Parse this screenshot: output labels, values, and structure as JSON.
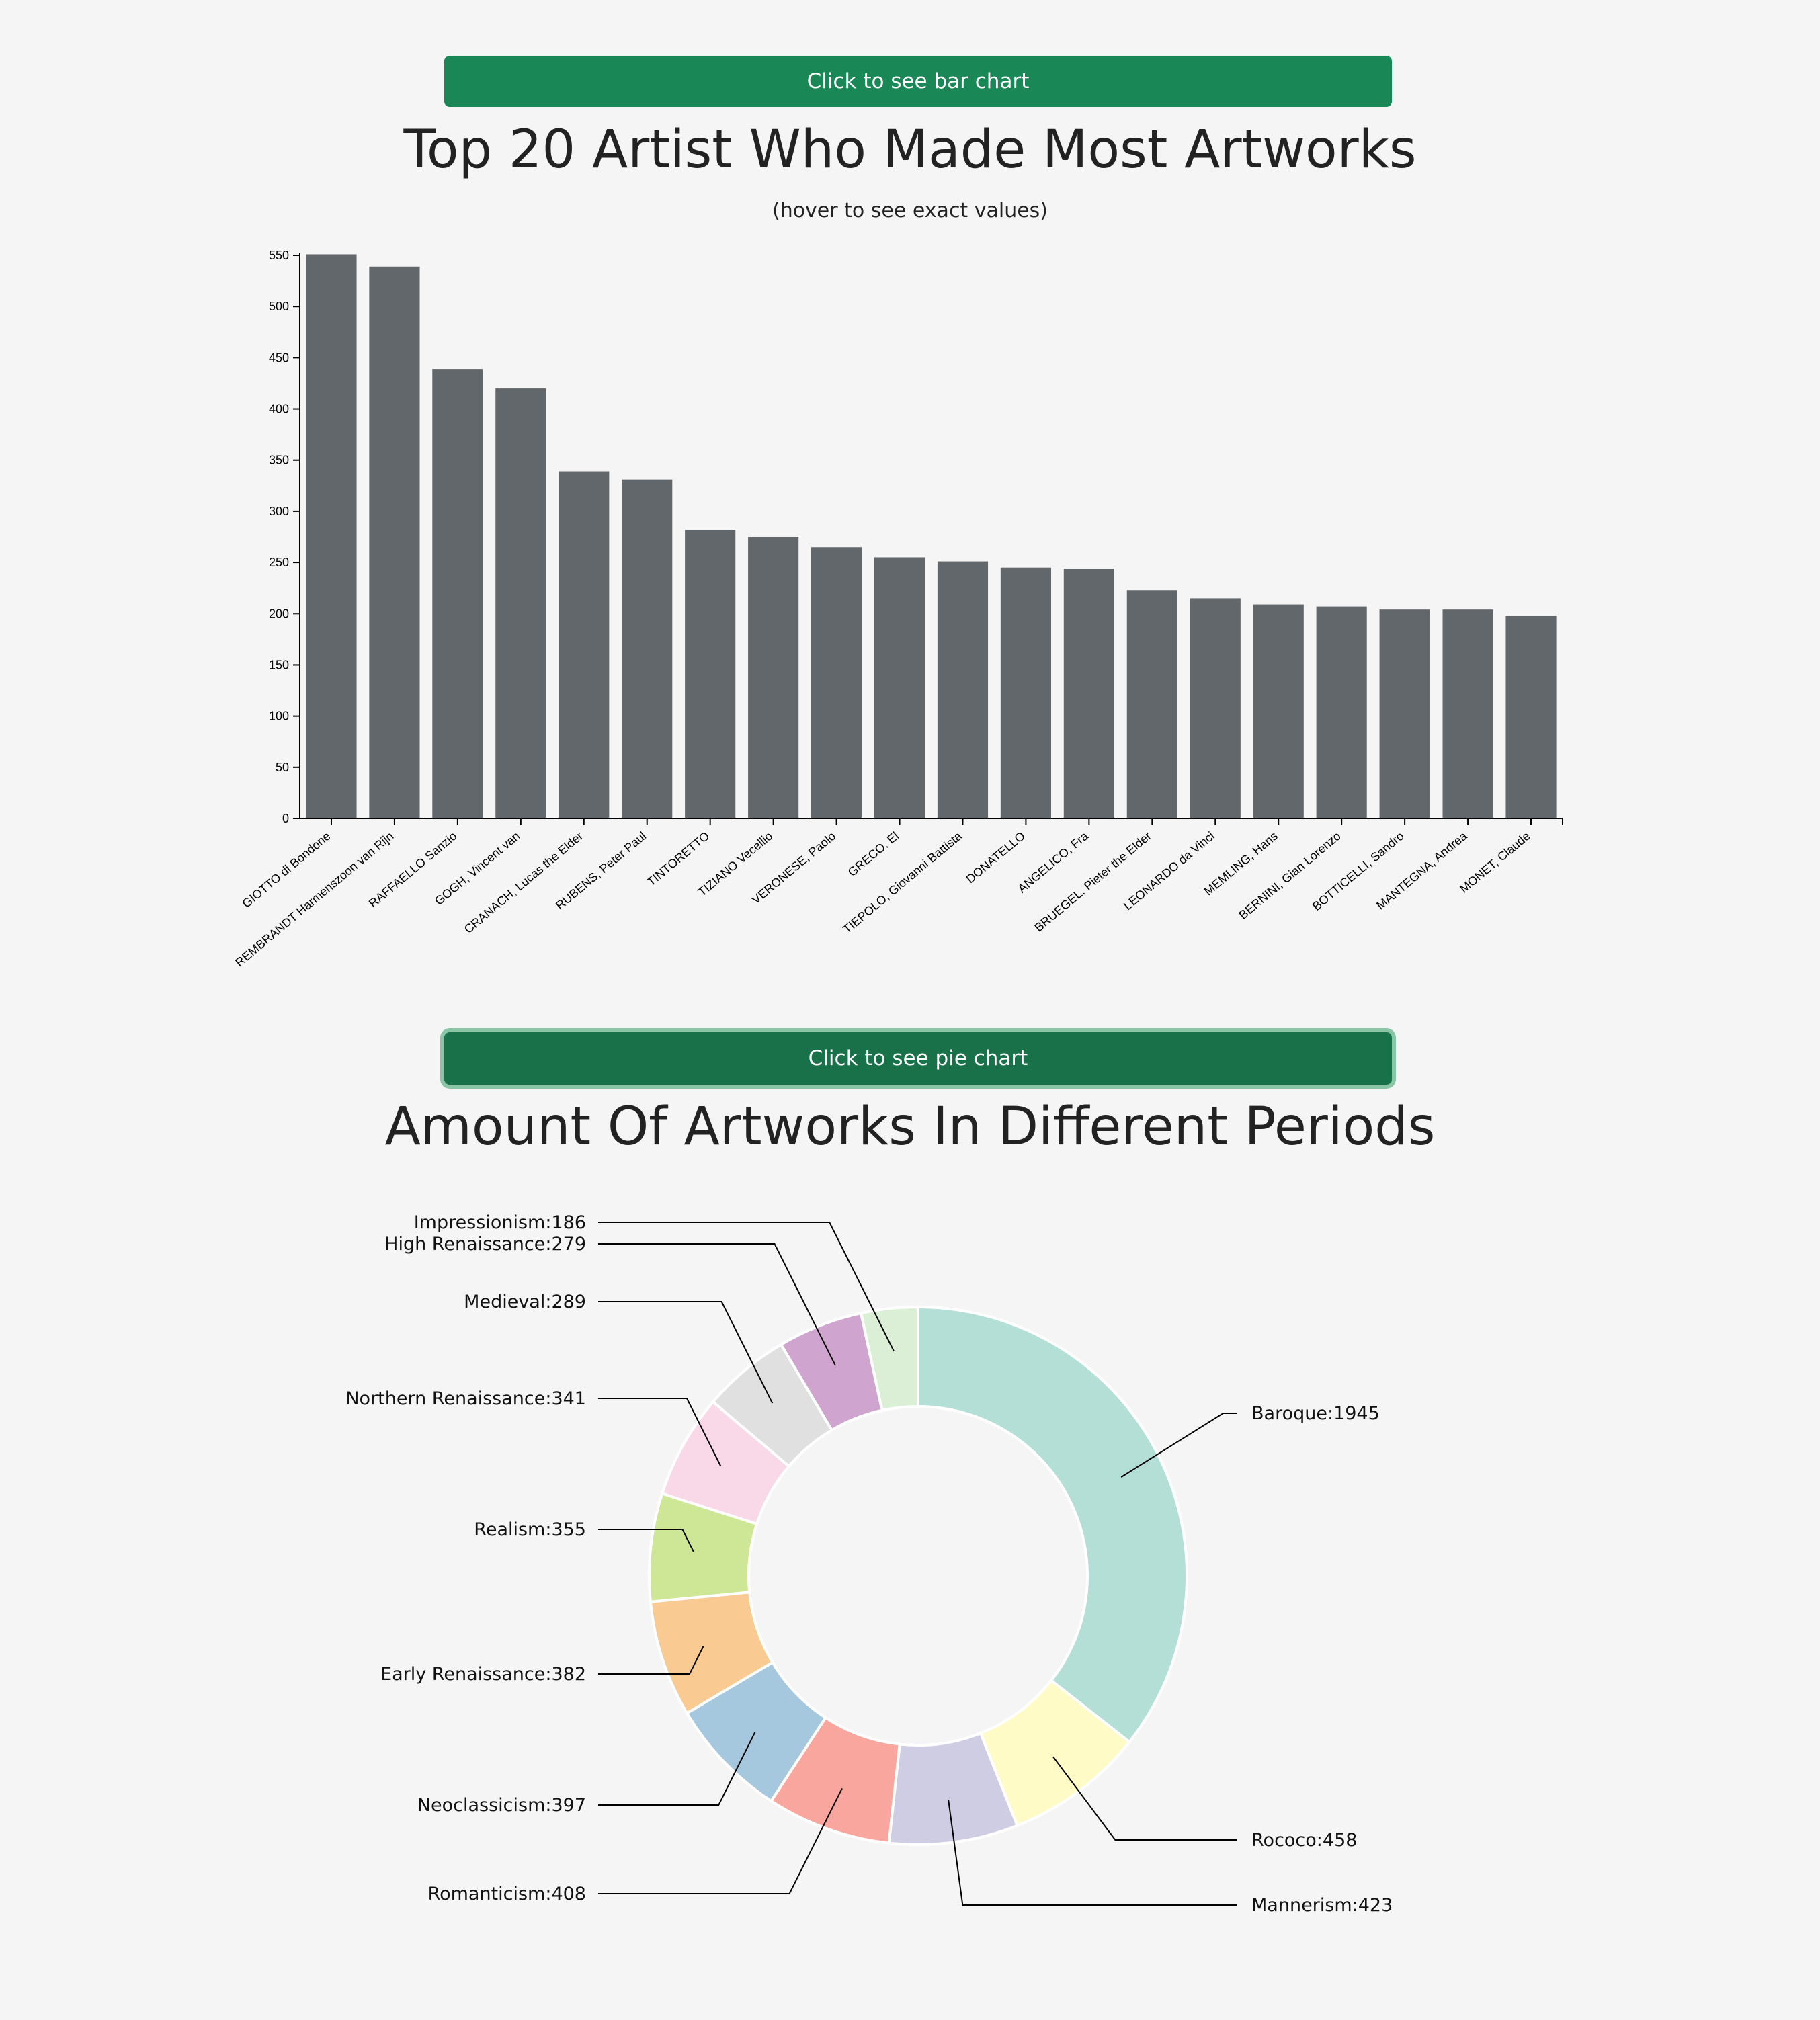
{
  "bar_section": {
    "button_label": "Click to see bar chart",
    "title": "Top 20 Artist Who Made Most Artworks",
    "subtitle": "(hover to see exact values)"
  },
  "pie_section": {
    "button_label": "Click to see pie chart",
    "title": "Amount Of Artworks In Different Periods"
  },
  "colors": {
    "bar_fill": "#62676b",
    "button_bar": "#1a8856",
    "button_pie": "#187149",
    "background": "#f5f5f5"
  },
  "chart_data": [
    {
      "type": "bar",
      "title": "Top 20 Artist Who Made Most Artworks",
      "subtitle": "(hover to see exact values)",
      "xlabel": "",
      "ylabel": "",
      "ylim": [
        0,
        550
      ],
      "yticks": [
        0,
        50,
        100,
        150,
        200,
        250,
        300,
        350,
        400,
        450,
        500,
        550
      ],
      "grid": false,
      "categories": [
        "GIOTTO di Bondone",
        "REMBRANDT Harmenszoon van Rijn",
        "RAFFAELLO Sanzio",
        "GOGH, Vincent van",
        "CRANACH, Lucas the Elder",
        "RUBENS, Peter Paul",
        "TINTORETTO",
        "TIZIANO Vecellio",
        "VERONESE, Paolo",
        "GRECO, El",
        "TIEPOLO, Giovanni Battista",
        "DONATELLO",
        "ANGELICO, Fra",
        "BRUEGEL, Pieter the Elder",
        "LEONARDO da Vinci",
        "MEMLING, Hans",
        "BERNINI, Gian Lorenzo",
        "BOTTICELLI, Sandro",
        "MANTEGNA, Andrea",
        "MONET, Claude"
      ],
      "values": [
        551,
        539,
        439,
        420,
        339,
        331,
        282,
        275,
        265,
        255,
        251,
        245,
        244,
        223,
        215,
        209,
        207,
        204,
        204,
        198
      ]
    },
    {
      "type": "pie",
      "title": "Amount Of Artworks In Different Periods",
      "donut": true,
      "slices": [
        {
          "label": "Baroque",
          "value": 1945,
          "color": "#b3dfd7"
        },
        {
          "label": "Rococo",
          "value": 458,
          "color": "#fefbc6"
        },
        {
          "label": "Mannerism",
          "value": 423,
          "color": "#cfcde3"
        },
        {
          "label": "Romanticism",
          "value": 408,
          "color": "#f9a79e"
        },
        {
          "label": "Neoclassicism",
          "value": 397,
          "color": "#a6c8de"
        },
        {
          "label": "Early Renaissance",
          "value": 382,
          "color": "#f9cb93"
        },
        {
          "label": "Realism",
          "value": 355,
          "color": "#cde796"
        },
        {
          "label": "Northern Renaissance",
          "value": 341,
          "color": "#f9d8e7"
        },
        {
          "label": "Medieval",
          "value": 289,
          "color": "#e0e0e0"
        },
        {
          "label": "High Renaissance",
          "value": 279,
          "color": "#cfa4ce"
        },
        {
          "label": "Impressionism",
          "value": 186,
          "color": "#daefd6"
        }
      ]
    }
  ]
}
